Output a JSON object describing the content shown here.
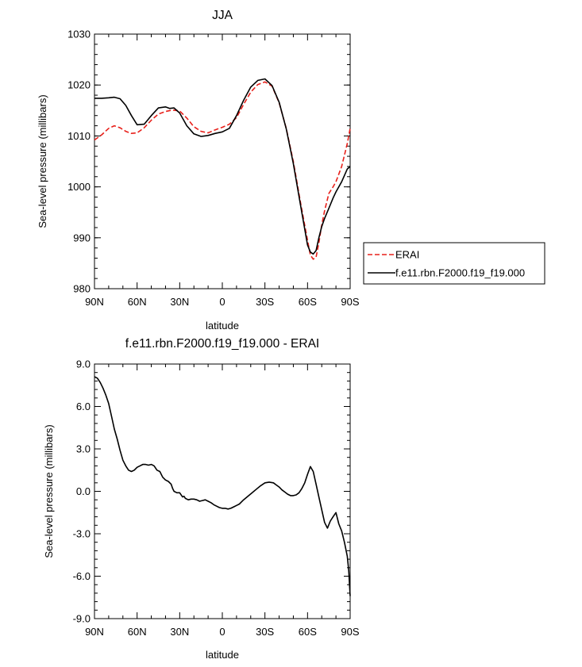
{
  "chart_data": [
    {
      "type": "line",
      "title": "JJA",
      "xlabel": "latitude",
      "ylabel": "Sea-level pressure (millibars)",
      "xlim": [
        -90,
        90
      ],
      "ylim": [
        980,
        1030
      ],
      "x_ticks": [
        -90,
        -60,
        -30,
        0,
        30,
        60,
        90
      ],
      "x_tick_labels": [
        "90N",
        "60N",
        "30N",
        "0",
        "30S",
        "60S",
        "90S"
      ],
      "y_ticks": [
        980,
        990,
        1000,
        1010,
        1020,
        1030
      ],
      "y_tick_labels": [
        "980",
        "990",
        "1000",
        "1010",
        "1020",
        "1030"
      ],
      "legend": "right",
      "series": [
        {
          "name": "ERAI",
          "color": "#e8201a",
          "dash": true,
          "x": [
            -90,
            -85,
            -80,
            -76,
            -72,
            -68,
            -64,
            -60,
            -55,
            -50,
            -45,
            -40,
            -35,
            -30,
            -25,
            -20,
            -15,
            -10,
            -5,
            0,
            5,
            10,
            15,
            20,
            25,
            30,
            35,
            40,
            45,
            50,
            55,
            60,
            62,
            64,
            66,
            68,
            70,
            72,
            75,
            78,
            80,
            84,
            88,
            90
          ],
          "values": [
            1009.2,
            1010.2,
            1011.5,
            1012.0,
            1011.6,
            1010.9,
            1010.5,
            1010.6,
            1011.6,
            1013.1,
            1014.3,
            1014.8,
            1015.1,
            1014.9,
            1013.5,
            1011.8,
            1010.9,
            1010.6,
            1011.2,
            1011.7,
            1012.3,
            1013.6,
            1016.2,
            1018.6,
            1020.1,
            1020.6,
            1019.8,
            1016.5,
            1011.5,
            1005.0,
            997.0,
            989.5,
            986.6,
            985.8,
            986.2,
            989.0,
            992.5,
            995.3,
            998.7,
            1000.0,
            1001.0,
            1004.0,
            1008.5,
            1011.5
          ]
        },
        {
          "name": "f.e11.rbn.F2000.f19_f19.000",
          "color": "#000000",
          "dash": false,
          "x": [
            -90,
            -85,
            -80,
            -76,
            -72,
            -68,
            -64,
            -60,
            -55,
            -50,
            -45,
            -40,
            -37,
            -34,
            -30,
            -25,
            -20,
            -15,
            -10,
            -5,
            0,
            5,
            10,
            15,
            20,
            25,
            30,
            35,
            40,
            45,
            50,
            55,
            60,
            62,
            64,
            66,
            68,
            70,
            72,
            75,
            78,
            80,
            84,
            88,
            90
          ],
          "values": [
            1017.4,
            1017.4,
            1017.5,
            1017.6,
            1017.3,
            1016.0,
            1014.0,
            1012.2,
            1012.3,
            1014.0,
            1015.5,
            1015.7,
            1015.4,
            1015.5,
            1014.5,
            1012.0,
            1010.4,
            1009.9,
            1010.1,
            1010.5,
            1010.8,
            1011.5,
            1014.0,
            1017.0,
            1019.6,
            1020.9,
            1021.2,
            1019.9,
            1016.6,
            1011.4,
            1004.6,
            996.5,
            988.6,
            987.2,
            986.8,
            987.5,
            990.0,
            992.2,
            993.8,
            995.8,
            997.8,
            999.0,
            1001.0,
            1003.5,
            1004.0
          ]
        }
      ]
    },
    {
      "type": "line",
      "title": "f.e11.rbn.F2000.f19_f19.000 - ERAI",
      "xlabel": "latitude",
      "ylabel": "Sea-level pressure (millibars)",
      "xlim": [
        -90,
        90
      ],
      "ylim": [
        -9,
        9
      ],
      "x_ticks": [
        -90,
        -60,
        -30,
        0,
        30,
        60,
        90
      ],
      "x_tick_labels": [
        "90N",
        "60N",
        "30N",
        "0",
        "30S",
        "60S",
        "90S"
      ],
      "y_ticks": [
        -9,
        -6,
        -3,
        0,
        3,
        6,
        9
      ],
      "y_tick_labels": [
        "-9.0",
        "-6.0",
        "-3.0",
        "0.0",
        "3.0",
        "6.0",
        "9.0"
      ],
      "series": [
        {
          "name": "f.e11.rbn.F2000.f19_f19.000 - ERAI",
          "color": "#000000",
          "dash": false,
          "x": [
            -90,
            -88,
            -86,
            -84,
            -82,
            -80,
            -78,
            -76,
            -74,
            -72,
            -70,
            -68,
            -66,
            -64,
            -62,
            -60,
            -58,
            -56,
            -54,
            -52,
            -50,
            -48,
            -46,
            -44,
            -42,
            -40,
            -38,
            -36,
            -35,
            -34,
            -32,
            -30,
            -28,
            -27,
            -26,
            -24,
            -22,
            -20,
            -18,
            -16,
            -14,
            -12,
            -10,
            -8,
            -6,
            -4,
            -2,
            0,
            2,
            4,
            6,
            8,
            10,
            12,
            15,
            18,
            21,
            24,
            27,
            30,
            33,
            36,
            38,
            40,
            42,
            44,
            46,
            48,
            50,
            52,
            54,
            56,
            58,
            60,
            62,
            64,
            66,
            68,
            70,
            72,
            74,
            76,
            78,
            80,
            82,
            84,
            86,
            88,
            89,
            90
          ],
          "values": [
            8.1,
            8.0,
            7.7,
            7.3,
            6.8,
            6.2,
            5.3,
            4.4,
            3.7,
            2.9,
            2.2,
            1.8,
            1.5,
            1.4,
            1.5,
            1.7,
            1.8,
            1.9,
            1.9,
            1.85,
            1.9,
            1.8,
            1.5,
            1.4,
            1.0,
            0.8,
            0.7,
            0.5,
            0.2,
            0.0,
            -0.1,
            -0.1,
            -0.4,
            -0.35,
            -0.5,
            -0.6,
            -0.55,
            -0.55,
            -0.6,
            -0.7,
            -0.65,
            -0.6,
            -0.7,
            -0.8,
            -0.95,
            -1.05,
            -1.15,
            -1.2,
            -1.2,
            -1.25,
            -1.2,
            -1.1,
            -1.0,
            -0.9,
            -0.6,
            -0.35,
            -0.1,
            0.15,
            0.4,
            0.6,
            0.65,
            0.6,
            0.45,
            0.3,
            0.1,
            -0.05,
            -0.2,
            -0.3,
            -0.3,
            -0.25,
            -0.1,
            0.2,
            0.6,
            1.2,
            1.75,
            1.4,
            0.5,
            -0.4,
            -1.3,
            -2.2,
            -2.6,
            -2.1,
            -1.8,
            -1.5,
            -2.3,
            -2.8,
            -3.6,
            -4.6,
            -5.6,
            -7.4
          ]
        }
      ]
    }
  ]
}
